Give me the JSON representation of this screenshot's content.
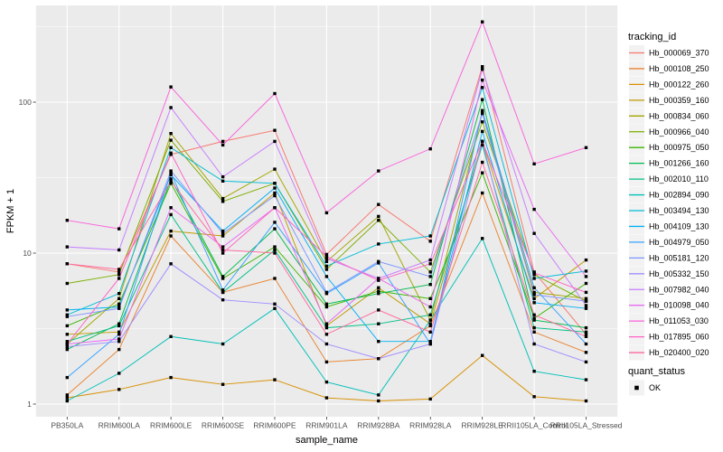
{
  "chart_data": {
    "type": "line",
    "title": "",
    "xlabel": "sample_name",
    "ylabel": "FPKM + 1",
    "y_scale": "log10",
    "y_ticks": [
      1,
      10,
      100
    ],
    "y_tick_labels": [
      "1",
      "10",
      "100"
    ],
    "y_minor_ticks": [
      3.162,
      31.62,
      316.2
    ],
    "ylim": [
      0.82,
      440
    ],
    "grid": true,
    "legend_position": "right",
    "point_marker": "filled-black-square",
    "categories": [
      "PB350LA",
      "RRIM600LA",
      "RRIM600LE",
      "RRIM600SE",
      "RRIM600PE",
      "RRIM901LA",
      "RRIM928BA",
      "RRIM928LA",
      "RRIM928LE",
      "RRII105LA_Control",
      "RRII105LA_Stressed"
    ],
    "series": [
      {
        "name": "Hb_000069_370",
        "color": "#F8766D",
        "values": [
          8.5,
          7.5,
          45,
          55,
          65,
          9.8,
          21,
          12,
          172,
          7.5,
          2.9
        ]
      },
      {
        "name": "Hb_000108_250",
        "color": "#EA8331",
        "values": [
          1.15,
          2.3,
          13,
          5.5,
          6.8,
          1.9,
          2.0,
          3.3,
          25,
          3.0,
          2.2
        ]
      },
      {
        "name": "Hb_000122_260",
        "color": "#D89000",
        "values": [
          1.1,
          1.25,
          1.5,
          1.35,
          1.45,
          1.1,
          1.05,
          1.08,
          2.1,
          1.12,
          1.05
        ]
      },
      {
        "name": "Hb_000359_160",
        "color": "#C09B00",
        "values": [
          2.9,
          3.0,
          14,
          13,
          25,
          3.3,
          5.9,
          3.4,
          55,
          5.0,
          9.0
        ]
      },
      {
        "name": "Hb_000834_060",
        "color": "#A3A500",
        "values": [
          2.5,
          5.0,
          62,
          23,
          36,
          8.8,
          17.5,
          3.6,
          85,
          5.5,
          5.0
        ]
      },
      {
        "name": "Hb_000966_040",
        "color": "#7CAE00",
        "values": [
          6.3,
          7.2,
          56,
          22,
          29,
          7.8,
          16.5,
          7.5,
          74,
          7.2,
          4.8
        ]
      },
      {
        "name": "Hb_000975_050",
        "color": "#39B600",
        "values": [
          3.3,
          4.6,
          29,
          6.8,
          11,
          4.4,
          5.6,
          5.0,
          34,
          3.7,
          6.3
        ]
      },
      {
        "name": "Hb_001266_160",
        "color": "#00BB4E",
        "values": [
          2.3,
          3.4,
          31,
          7.0,
          14.5,
          4.6,
          5.4,
          6.2,
          104,
          3.6,
          3.2
        ]
      },
      {
        "name": "Hb_002010_110",
        "color": "#00C087",
        "values": [
          2.6,
          3.3,
          18,
          5.5,
          10.5,
          3.2,
          3.4,
          3.9,
          52,
          3.2,
          3.0
        ]
      },
      {
        "name": "Hb_002894_090",
        "color": "#00C0B8",
        "values": [
          1.05,
          1.6,
          2.8,
          2.5,
          4.3,
          1.4,
          1.15,
          3.6,
          12.5,
          1.65,
          1.45
        ]
      },
      {
        "name": "Hb_003494_130",
        "color": "#00BCD8",
        "values": [
          3.9,
          5.4,
          50,
          30,
          29,
          8.2,
          11.5,
          13,
          125,
          6.8,
          7.6
        ]
      },
      {
        "name": "Hb_004109_130",
        "color": "#00B0F6",
        "values": [
          4.2,
          4.4,
          33,
          14,
          27,
          7.0,
          2.6,
          2.6,
          64,
          4.7,
          4.3
        ]
      },
      {
        "name": "Hb_004979_050",
        "color": "#35A2FF",
        "values": [
          1.5,
          2.9,
          34,
          5.7,
          16,
          5.4,
          8.6,
          2.5,
          88,
          5.9,
          2.5
        ]
      },
      {
        "name": "Hb_005181_120",
        "color": "#7C96FF",
        "values": [
          3.8,
          4.3,
          35,
          13.5,
          24,
          5.5,
          8.8,
          7.0,
          84,
          5.3,
          4.8
        ]
      },
      {
        "name": "Hb_005332_150",
        "color": "#A18CFF",
        "values": [
          2.4,
          2.6,
          8.5,
          4.9,
          4.6,
          2.5,
          2.0,
          2.5,
          55,
          2.5,
          1.9
        ]
      },
      {
        "name": "Hb_007982_040",
        "color": "#C77CFF",
        "values": [
          11,
          10.5,
          92,
          32,
          55,
          9.2,
          6.8,
          9.0,
          165,
          13.5,
          4.5
        ]
      },
      {
        "name": "Hb_010098_040",
        "color": "#E76BF3",
        "values": [
          2.5,
          2.7,
          20,
          11,
          20,
          3.4,
          6.8,
          4.4,
          140,
          19.5,
          7.0
        ]
      },
      {
        "name": "Hb_011053_030",
        "color": "#FA62DB",
        "values": [
          16.5,
          14.5,
          126,
          52,
          114,
          18.5,
          35,
          49,
          340,
          39,
          50
        ]
      },
      {
        "name": "Hb_017895_060",
        "color": "#FF61C7",
        "values": [
          2.5,
          6.8,
          46,
          10,
          20,
          9.5,
          6.6,
          8.5,
          55,
          7.4,
          5.5
        ]
      },
      {
        "name": "Hb_020400_020",
        "color": "#FF689F",
        "values": [
          8.5,
          7.8,
          30,
          10.5,
          10,
          2.9,
          4.2,
          3.0,
          40,
          3.9,
          2.8
        ]
      }
    ],
    "legends": {
      "tracking_id": {
        "title": "tracking_id"
      },
      "quant_status": {
        "title": "quant_status",
        "items": [
          {
            "label": "OK",
            "marker": "filled-black-square",
            "color": "#000000"
          }
        ]
      }
    }
  },
  "style": {
    "background": "#FFFFFF",
    "panel_bg": "#EBEBEB",
    "grid_color": "#FFFFFF",
    "axis_text_color": "#4D4D4D",
    "axis_title_color": "#000000",
    "tick_mark_color": "#333333",
    "legend_key_bg": "#F2F2F2",
    "point_color": "#000000"
  }
}
